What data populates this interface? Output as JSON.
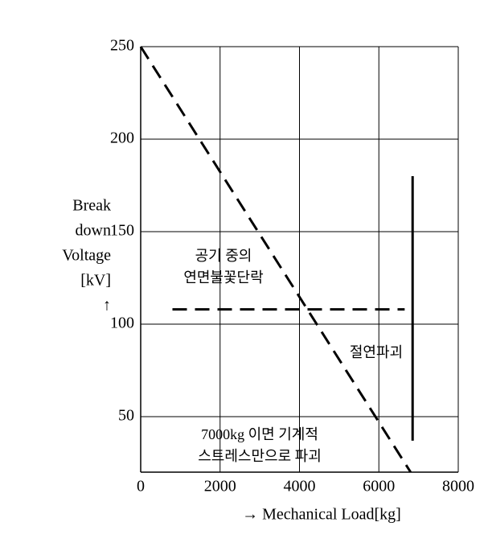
{
  "chart_data": {
    "type": "line",
    "x_label": "→ Mechanical Load[kg]",
    "y_label": [
      "Break",
      "down",
      "Voltage",
      "[kV]",
      "↑"
    ],
    "xlim": [
      0,
      8000
    ],
    "xticks": [
      0,
      2000,
      4000,
      6000,
      8000
    ],
    "ylim": [
      20,
      250
    ],
    "yticks": [
      50,
      100,
      150,
      200,
      250
    ],
    "grid": true,
    "series": [
      {
        "color": "#000000",
        "dashed": true,
        "x": [
          0,
          6800
        ],
        "values": [
          250,
          20
        ]
      },
      {
        "color": "#000000",
        "dashed": true,
        "x": [
          800,
          6650
        ],
        "values": [
          108,
          108
        ]
      },
      {
        "color": "#000000",
        "dashed": false,
        "x": [
          6850,
          6850
        ],
        "values": [
          180,
          37
        ]
      }
    ],
    "annotations": [
      [
        "공기 중의",
        "연면불꽃단락"
      ],
      [
        "절연파괴"
      ],
      [
        "7000kg 이면 기계적",
        "스트레스만으로 파괴"
      ]
    ]
  }
}
